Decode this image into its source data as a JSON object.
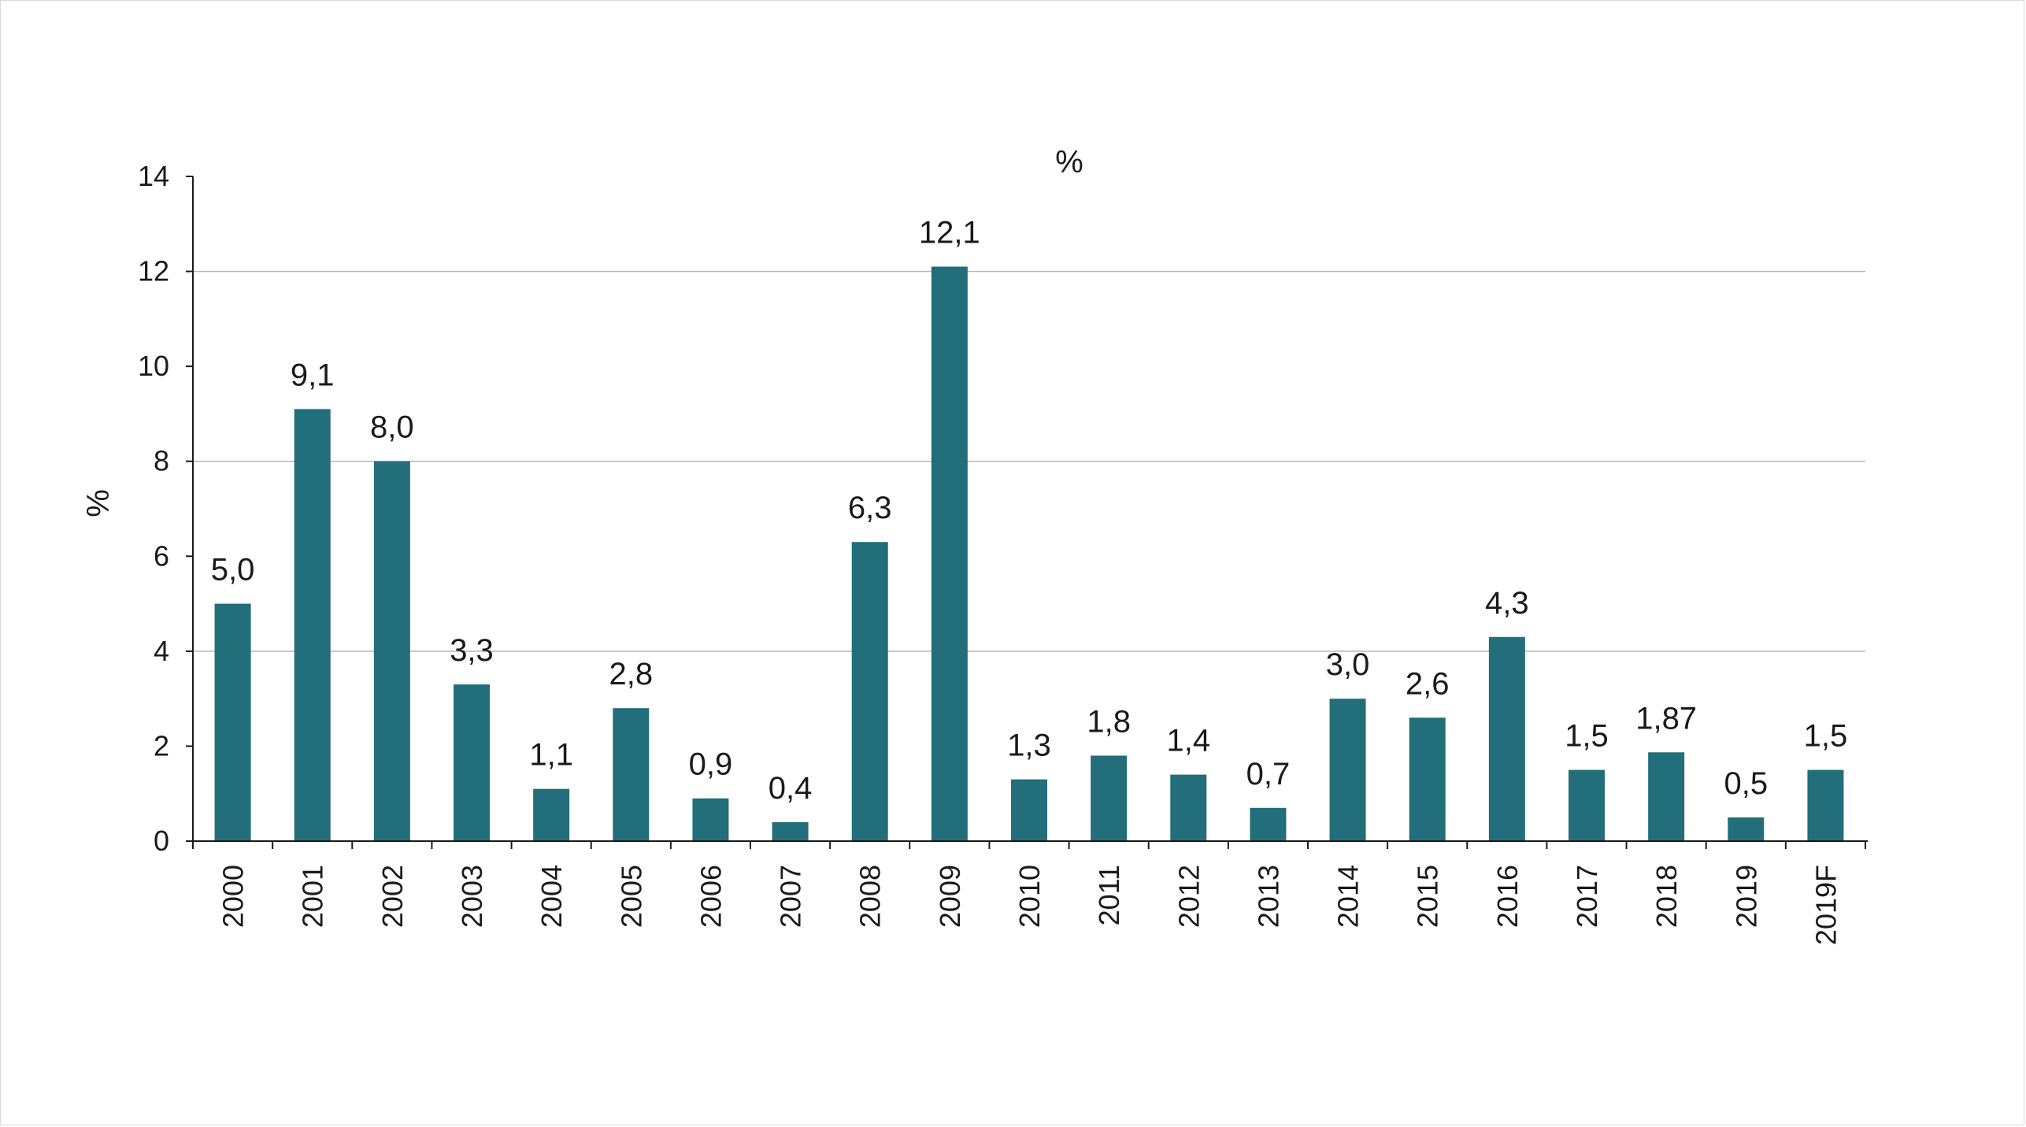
{
  "chart_data": {
    "type": "bar",
    "title": "%",
    "xlabel": "",
    "ylabel": "%",
    "ylim": [
      0,
      14
    ],
    "yticks": [
      0,
      2,
      4,
      6,
      8,
      10,
      12,
      14
    ],
    "grid": "horizontal",
    "bar_color": "#226e7a",
    "categories": [
      "2000",
      "2001",
      "2002",
      "2003",
      "2004",
      "2005",
      "2006",
      "2007",
      "2008",
      "2009",
      "2010",
      "2011",
      "2012",
      "2013",
      "2014",
      "2015",
      "2016",
      "2017",
      "2018",
      "2019",
      "2019F"
    ],
    "values": [
      5.0,
      9.1,
      8.0,
      3.3,
      1.1,
      2.8,
      0.9,
      0.4,
      6.3,
      12.1,
      1.3,
      1.8,
      1.4,
      0.7,
      3.0,
      2.6,
      4.3,
      1.5,
      1.87,
      0.5,
      1.5
    ],
    "data_labels": [
      "5,0",
      "9,1",
      "8,0",
      "3,3",
      "1,1",
      "2,8",
      "0,9",
      "0,4",
      "6,3",
      "12,1",
      "1,3",
      "1,8",
      "1,4",
      "0,7",
      "3,0",
      "2,6",
      "4,3",
      "1,5",
      "1,87",
      "0,5",
      "1,5"
    ]
  }
}
